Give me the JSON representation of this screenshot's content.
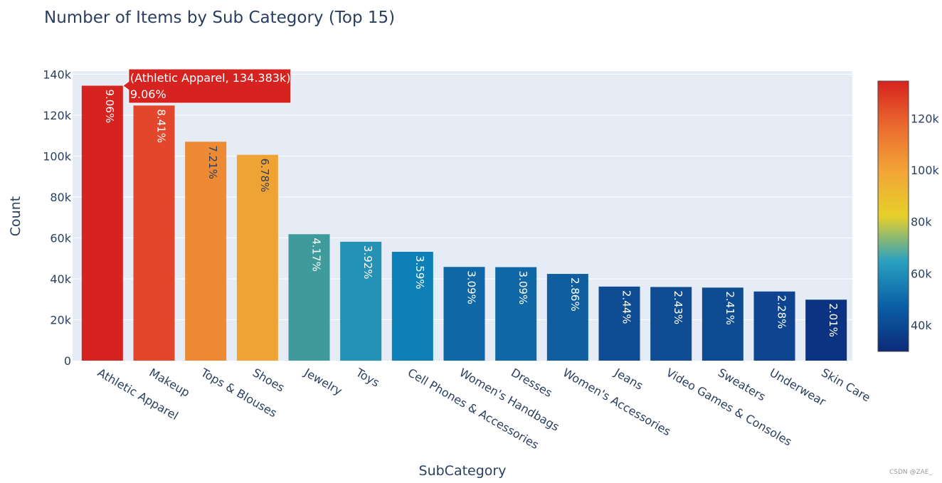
{
  "chart_data": {
    "type": "bar",
    "title": "Number of Items by Sub Category (Top 15)",
    "xlabel": "SubCategory",
    "ylabel": "Count",
    "ylim": [
      0,
      140000
    ],
    "y_ticks": [
      0,
      20000,
      40000,
      60000,
      80000,
      100000,
      120000,
      140000
    ],
    "y_tick_labels": [
      "0",
      "20k",
      "40k",
      "60k",
      "80k",
      "100k",
      "120k",
      "140k"
    ],
    "categories": [
      "Athletic Apparel",
      "Makeup",
      "Tops & Blouses",
      "Shoes",
      "Jewelry",
      "Toys",
      "Cell Phones & Accessories",
      "Women's Handbags",
      "Dresses",
      "Women's Accessories",
      "Jeans",
      "Video Games & Consoles",
      "Sweaters",
      "Underwear",
      "Skin Care"
    ],
    "values": [
      134383,
      124700,
      107000,
      100600,
      61800,
      58100,
      53200,
      45800,
      45700,
      42400,
      36200,
      36000,
      35700,
      33800,
      29800
    ],
    "data_labels": [
      "9.06%",
      "8.41%",
      "7.21%",
      "6.78%",
      "4.17%",
      "3.92%",
      "3.59%",
      "3.09%",
      "3.09%",
      "2.86%",
      "2.44%",
      "2.43%",
      "2.41%",
      "2.28%",
      "2.01%"
    ],
    "bar_colors": [
      "#d7231f",
      "#e2472b",
      "#ee8a34",
      "#f0a235",
      "#3f9a9b",
      "#2591b4",
      "#0d80b7",
      "#0f67a5",
      "#0f67a5",
      "#0f5fa0",
      "#0f4c92",
      "#0f4c92",
      "#0f4b91",
      "#0f4590",
      "#0c3381"
    ],
    "label_colors": [
      "#ffffff",
      "#ffffff",
      "#2a3f5f",
      "#2a3f5f",
      "#ffffff",
      "#ffffff",
      "#ffffff",
      "#ffffff",
      "#ffffff",
      "#ffffff",
      "#ffffff",
      "#ffffff",
      "#ffffff",
      "#ffffff",
      "#ffffff"
    ],
    "colorbar": {
      "range": [
        29800,
        134383
      ],
      "ticks": [
        40000,
        60000,
        80000,
        100000,
        120000
      ],
      "tick_labels": [
        "40k",
        "60k",
        "80k",
        "100k",
        "120k"
      ],
      "colorscale": [
        "#0c2a7a",
        "#0a5fa5",
        "#2aa0c0",
        "#e6d02a",
        "#f2a536",
        "#ea6a2f",
        "#d7231f"
      ]
    },
    "hover": {
      "category_index": 0,
      "line1": "(Athletic Apparel, 134.383k)",
      "line2": "9.06%",
      "color": "#d7231f"
    }
  },
  "watermark": "CSDN @ZAE_"
}
